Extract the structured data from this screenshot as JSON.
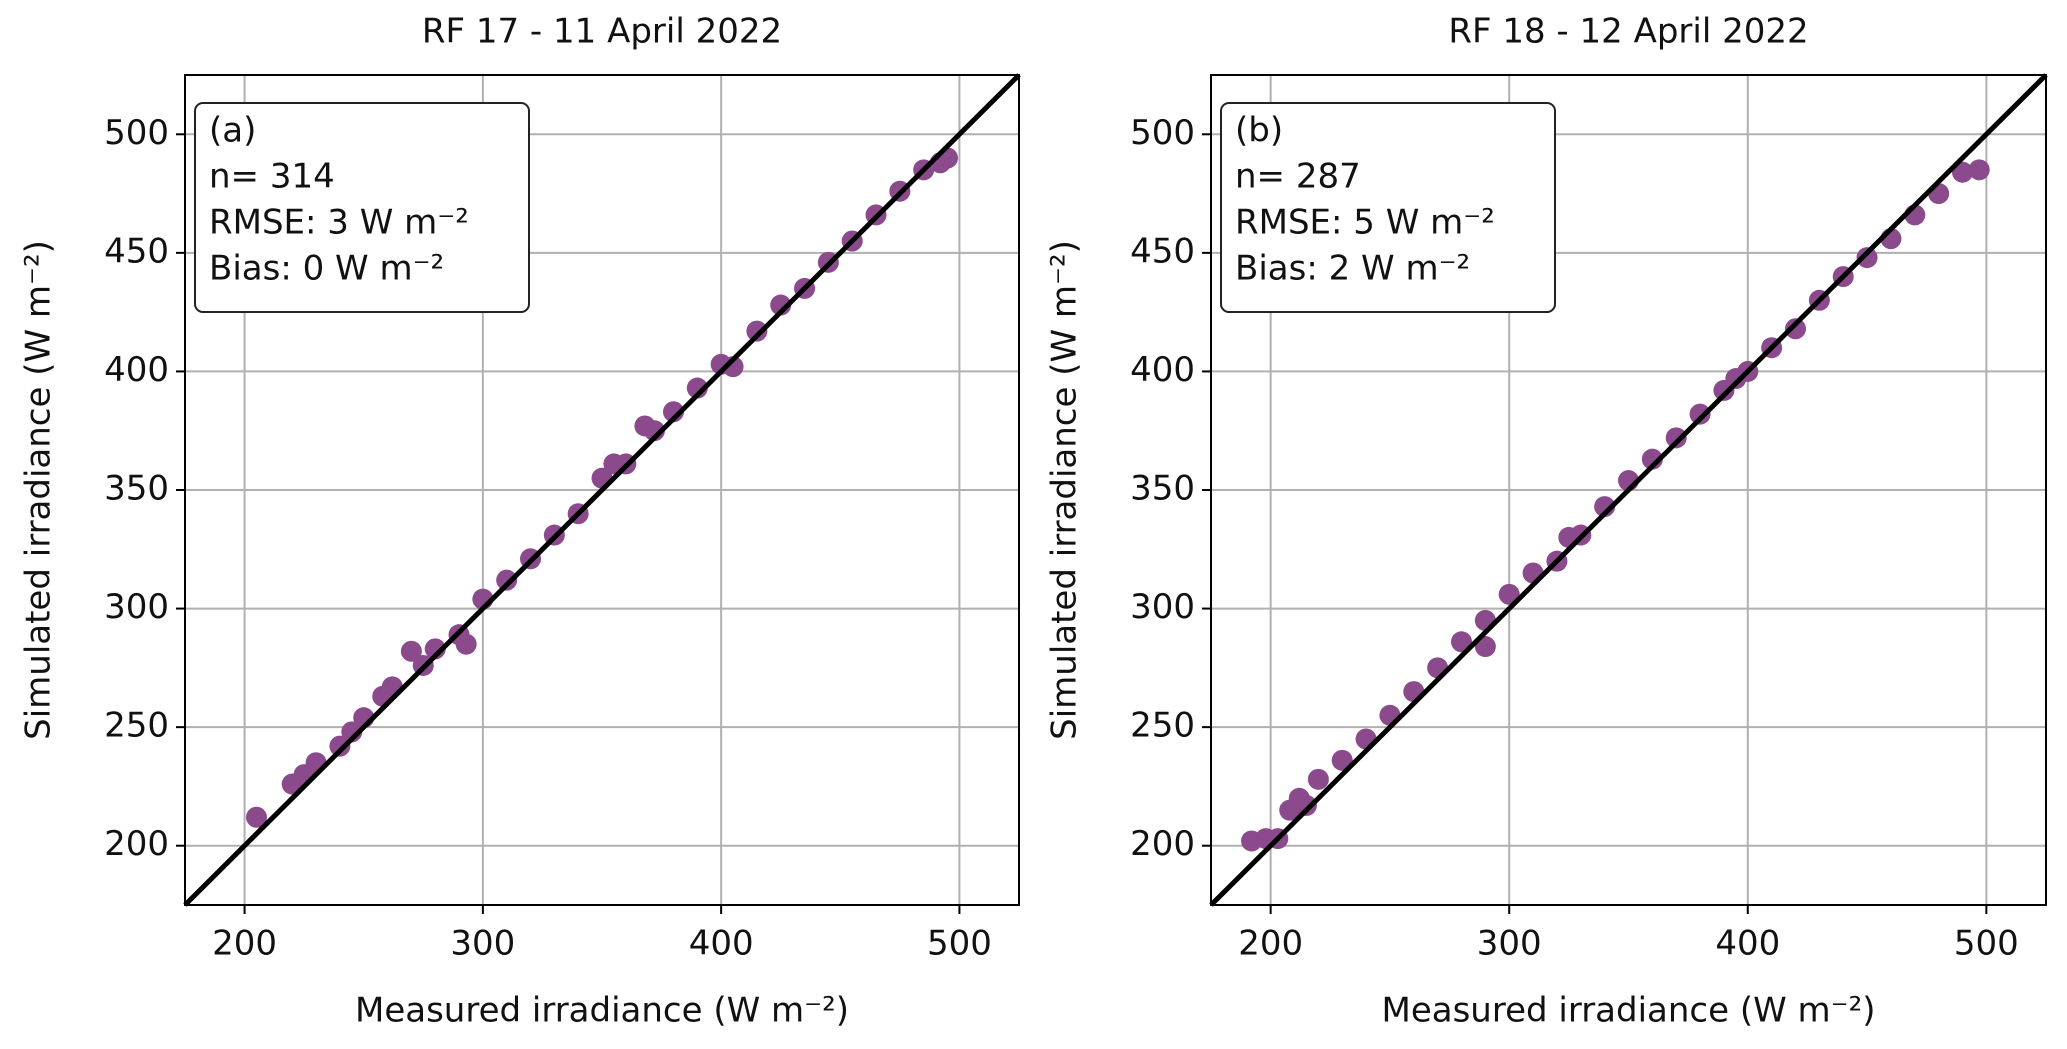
{
  "chart_data": [
    {
      "type": "scatter",
      "title": "RF 17 - 11 April 2022",
      "xlabel": "Measured irradiance (W m⁻²)",
      "ylabel": "Simulated irradiance (W m⁻²)",
      "annotations": [
        "(a)",
        "n= 314",
        "RMSE: 3 W m⁻²",
        "Bias: 0 W m⁻²"
      ],
      "color": "#8b4a8c",
      "grid": true,
      "x": [
        205,
        220,
        225,
        230,
        240,
        245,
        250,
        258,
        262,
        270,
        275,
        280,
        290,
        293,
        300,
        310,
        320,
        330,
        340,
        350,
        355,
        360,
        368,
        372,
        380,
        390,
        400,
        405,
        415,
        425,
        435,
        445,
        455,
        465,
        475,
        485,
        492,
        495
      ],
      "values": [
        212,
        226,
        230,
        235,
        242,
        248,
        254,
        263,
        267,
        282,
        276,
        283,
        289,
        285,
        304,
        312,
        321,
        331,
        340,
        355,
        361,
        361,
        377,
        375,
        383,
        393,
        403,
        402,
        417,
        428,
        435,
        446,
        455,
        466,
        476,
        485,
        488,
        490
      ],
      "xlim": [
        175,
        525
      ],
      "ylim": [
        175,
        525
      ],
      "xticks": [
        200,
        300,
        400,
        500
      ],
      "yticks": [
        200,
        250,
        300,
        350,
        400,
        450,
        500
      ]
    },
    {
      "type": "scatter",
      "title": "RF 18 - 12 April 2022",
      "xlabel": "Measured irradiance (W m⁻²)",
      "ylabel": "Simulated irradiance (W m⁻²)",
      "annotations": [
        "(b)",
        "n= 287",
        "RMSE: 5 W m⁻²",
        "Bias: 2 W m⁻²"
      ],
      "color": "#8b4a8c",
      "grid": true,
      "x": [
        192,
        198,
        203,
        208,
        212,
        215,
        220,
        230,
        240,
        250,
        260,
        270,
        280,
        290,
        290,
        300,
        310,
        320,
        325,
        330,
        340,
        350,
        360,
        370,
        380,
        390,
        395,
        400,
        410,
        420,
        430,
        440,
        450,
        460,
        470,
        480,
        490,
        497
      ],
      "values": [
        202,
        203,
        203,
        215,
        220,
        217,
        228,
        236,
        245,
        255,
        265,
        275,
        286,
        284,
        295,
        306,
        315,
        320,
        330,
        331,
        343,
        354,
        363,
        372,
        382,
        392,
        397,
        400,
        410,
        418,
        430,
        440,
        448,
        456,
        466,
        475,
        484,
        485
      ],
      "xlim": [
        175,
        525
      ],
      "ylim": [
        175,
        525
      ],
      "xticks": [
        200,
        300,
        400,
        500
      ],
      "yticks": [
        200,
        250,
        300,
        350,
        400,
        450,
        500
      ]
    }
  ]
}
